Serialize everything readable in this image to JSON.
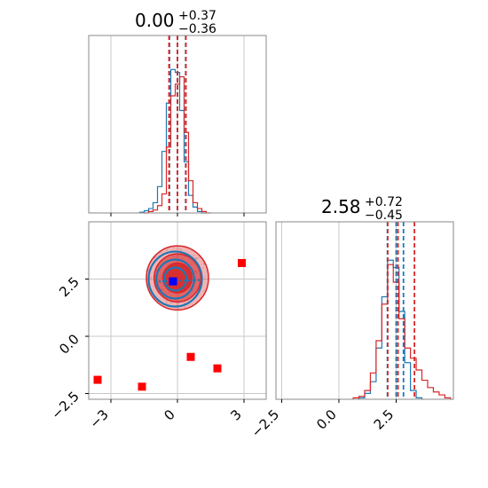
{
  "colors": {
    "blue": "#1f77b4",
    "red": "#d62728",
    "marker_red": "#ff0000",
    "marker_blue": "#0000ff",
    "grid": "#c8c8c8",
    "axes": "#888888"
  },
  "chart_data": [
    {
      "type": "histogram",
      "panel": "top-left",
      "title": {
        "median": "0.00",
        "plus": "+0.37",
        "minus": "−0.36"
      },
      "xlim": [
        -4.0,
        4.0
      ],
      "grid": true,
      "series": [
        {
          "name": "",
          "color": "#1f77b4",
          "x": [
            -1.6,
            -1.4,
            -1.2,
            -1.0,
            -0.8,
            -0.6,
            -0.4,
            -0.2,
            0.0,
            0.2,
            0.4,
            0.6,
            0.8,
            1.0,
            1.2
          ],
          "values": [
            0.005,
            0.015,
            0.03,
            0.07,
            0.18,
            0.42,
            0.75,
            0.98,
            0.96,
            0.7,
            0.35,
            0.12,
            0.04,
            0.01,
            0.0
          ],
          "quantiles": [
            -0.36,
            0.0,
            0.37
          ]
        },
        {
          "name": "",
          "color": "#d62728",
          "x": [
            -1.4,
            -1.2,
            -1.0,
            -0.8,
            -0.6,
            -0.4,
            -0.2,
            0.0,
            0.2,
            0.4,
            0.6,
            0.8,
            1.0,
            1.2,
            1.4
          ],
          "values": [
            0.0,
            0.01,
            0.02,
            0.05,
            0.13,
            0.45,
            0.8,
            0.88,
            0.93,
            0.55,
            0.22,
            0.07,
            0.03,
            0.01,
            0.0
          ],
          "quantiles": [
            -0.38,
            0.0,
            0.38
          ]
        }
      ]
    },
    {
      "type": "scatter",
      "panel": "bottom-left",
      "xlim": [
        -4.0,
        4.0
      ],
      "ylim": [
        -2.75,
        5.0
      ],
      "xticks": [
        -3,
        0,
        3
      ],
      "yticks": [
        -2.5,
        0.0,
        2.5
      ],
      "xtick_labels": [
        "−3",
        "0",
        "3"
      ],
      "ytick_labels": [
        "−2.5",
        "0.0",
        "2.5"
      ],
      "grid": true,
      "contours": [
        {
          "color": "#d62728",
          "center": [
            0.0,
            2.55
          ],
          "radii": [
            1.4,
            1.05,
            0.65
          ],
          "fill_opacity": [
            0.35,
            0.55,
            0.85
          ]
        },
        {
          "color": "#1f77b4",
          "center": [
            -0.1,
            2.5
          ],
          "radii": [
            1.2,
            0.85,
            0.5
          ],
          "fill_opacity": [
            0.0,
            0.0,
            0.0
          ]
        }
      ],
      "markers_red": [
        [
          -3.6,
          -1.9
        ],
        [
          -1.6,
          -2.2
        ],
        [
          0.6,
          -0.9
        ],
        [
          1.8,
          -1.4
        ],
        [
          2.9,
          3.2
        ]
      ],
      "markers_blue": [
        [
          -0.2,
          2.4
        ]
      ],
      "center_point": [
        0.0,
        2.55
      ]
    },
    {
      "type": "histogram",
      "panel": "bottom-right",
      "title": {
        "median": "2.58",
        "plus": "+0.72",
        "minus": "−0.45"
      },
      "xlim": [
        -2.75,
        5.0
      ],
      "xticks": [
        -2.5,
        0.0,
        2.5
      ],
      "xtick_labels": [
        "−2.5",
        "0.0",
        "2.5"
      ],
      "grid": true,
      "series": [
        {
          "name": "",
          "color": "#1f77b4",
          "x": [
            1.0,
            1.25,
            1.5,
            1.75,
            2.0,
            2.25,
            2.5,
            2.75,
            3.0,
            3.25,
            3.5
          ],
          "values": [
            0.01,
            0.04,
            0.12,
            0.35,
            0.7,
            0.95,
            0.9,
            0.6,
            0.25,
            0.06,
            0.01
          ],
          "quantiles": [
            2.12,
            2.5,
            2.82
          ]
        },
        {
          "name": "",
          "color": "#d62728",
          "x": [
            0.75,
            1.0,
            1.25,
            1.5,
            1.75,
            2.0,
            2.25,
            2.5,
            2.75,
            3.0,
            3.25,
            3.5,
            3.75,
            4.0,
            4.25,
            4.5,
            4.75
          ],
          "values": [
            0.01,
            0.02,
            0.06,
            0.18,
            0.4,
            0.65,
            0.92,
            0.8,
            0.55,
            0.35,
            0.28,
            0.2,
            0.13,
            0.08,
            0.05,
            0.03,
            0.01
          ],
          "quantiles": [
            2.13,
            2.58,
            3.3
          ]
        }
      ]
    }
  ]
}
